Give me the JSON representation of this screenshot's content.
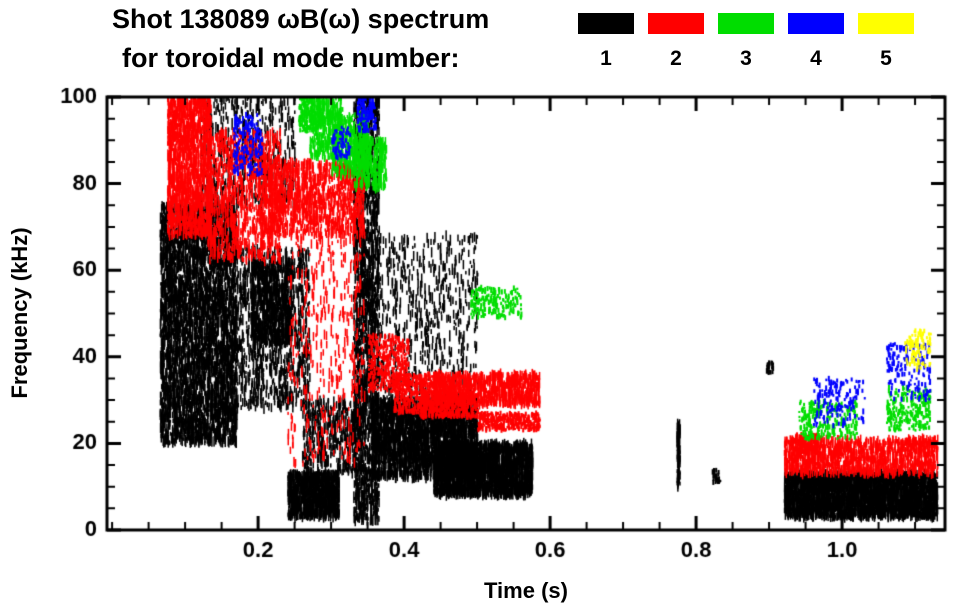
{
  "header": {
    "title": "Shot 138089 ωB(ω) spectrum",
    "subtitle": "for toroidal mode number:"
  },
  "legend": {
    "position": "top-right",
    "items": [
      {
        "label": "1",
        "color": "#000000"
      },
      {
        "label": "2",
        "color": "#ff0000"
      },
      {
        "label": "3",
        "color": "#00dd00"
      },
      {
        "label": "4",
        "color": "#0000ff"
      },
      {
        "label": "5",
        "color": "#ffff00"
      }
    ]
  },
  "chart_data": {
    "type": "scatter",
    "title": "Shot 138089 ωB(ω) spectrum for toroidal mode number 1–5",
    "xlabel": "Time (s)",
    "ylabel": "Frequency (kHz)",
    "xlim": [
      -0.007,
      1.141
    ],
    "ylim": [
      0,
      100
    ],
    "x_ticks": [
      0.2,
      0.4,
      0.6,
      0.8,
      1.0
    ],
    "x_tick_labels": [
      "0.2",
      "0.4",
      "0.6",
      "0.8",
      "1.0"
    ],
    "x_minor": 0.05,
    "y_ticks": [
      0,
      20,
      40,
      60,
      80,
      100
    ],
    "y_tick_labels": [
      "0",
      "20",
      "40",
      "60",
      "80",
      "100"
    ],
    "y_minor": 5,
    "grid": false,
    "frame": true,
    "series": [
      {
        "name": "n=1",
        "mode": 1,
        "color": "#000000",
        "blobs": [
          {
            "t": [
              0.065,
              0.17
            ],
            "f": [
              20,
              75
            ],
            "n": 4200,
            "st": 1
          },
          {
            "t": [
              0.12,
              0.25
            ],
            "f": [
              75,
              100
            ],
            "n": 550,
            "st": 1
          },
          {
            "t": [
              0.17,
              0.27
            ],
            "f": [
              28,
              65
            ],
            "n": 1000,
            "st": 1
          },
          {
            "t": [
              0.19,
              0.245
            ],
            "f": [
              43,
              62
            ],
            "n": 700,
            "st": 1
          },
          {
            "t": [
              0.24,
              0.31
            ],
            "f": [
              3,
              13
            ],
            "n": 1000,
            "st": 1
          },
          {
            "t": [
              0.26,
              0.34
            ],
            "f": [
              13,
              30
            ],
            "n": 450,
            "st": 1
          },
          {
            "t": [
              0.33,
              0.365
            ],
            "f": [
              2,
              100
            ],
            "n": 1900,
            "st": 1
          },
          {
            "t": [
              0.365,
              0.5
            ],
            "f": [
              28,
              68
            ],
            "n": 650,
            "st": 1
          },
          {
            "t": [
              0.355,
              0.5
            ],
            "f": [
              12,
              30
            ],
            "n": 2800,
            "st": 1
          },
          {
            "t": [
              0.44,
              0.575
            ],
            "f": [
              8,
              20
            ],
            "n": 2400,
            "st": 1
          },
          {
            "t": [
              0.773,
              0.777
            ],
            "f": [
              10,
              25
            ],
            "n": 110,
            "st": 1
          },
          {
            "t": [
              0.82,
              0.832
            ],
            "f": [
              11,
              14
            ],
            "n": 25,
            "st": 0
          },
          {
            "t": [
              0.895,
              0.905
            ],
            "f": [
              36,
              39
            ],
            "n": 22,
            "st": 0
          },
          {
            "t": [
              0.92,
              1.13
            ],
            "f": [
              3,
              13
            ],
            "n": 3200,
            "st": 1
          }
        ]
      },
      {
        "name": "n=2",
        "mode": 2,
        "color": "#ff0000",
        "blobs": [
          {
            "t": [
              0.075,
              0.135
            ],
            "f": [
              68,
              100
            ],
            "n": 1500,
            "st": 1
          },
          {
            "t": [
              0.13,
              0.23
            ],
            "f": [
              62,
              92
            ],
            "n": 950,
            "st": 1
          },
          {
            "t": [
              0.2,
              0.345
            ],
            "f": [
              68,
              85
            ],
            "n": 1150,
            "st": 1
          },
          {
            "t": [
              0.24,
              0.345
            ],
            "f": [
              15,
              68
            ],
            "n": 420,
            "st": 1
          },
          {
            "t": [
              0.35,
              0.405
            ],
            "f": [
              32,
              45
            ],
            "n": 380,
            "st": 0
          },
          {
            "t": [
              0.385,
              0.445
            ],
            "f": [
              27,
              36
            ],
            "n": 380,
            "st": 0
          },
          {
            "t": [
              0.42,
              0.5
            ],
            "f": [
              26,
              32
            ],
            "n": 420,
            "st": 0
          },
          {
            "t": [
              0.44,
              0.585
            ],
            "f": [
              29,
              36
            ],
            "n": 850,
            "st": 1
          },
          {
            "t": [
              0.5,
              0.585
            ],
            "f": [
              23,
              27
            ],
            "n": 320,
            "st": 0
          },
          {
            "t": [
              0.92,
              1.13
            ],
            "f": [
              13,
              21
            ],
            "n": 1200,
            "st": 1
          },
          {
            "t": [
              0.93,
              0.965
            ],
            "f": [
              18,
              22
            ],
            "n": 140,
            "st": 0
          }
        ]
      },
      {
        "name": "n=3",
        "mode": 3,
        "color": "#00dd00",
        "blobs": [
          {
            "t": [
              0.255,
              0.285
            ],
            "f": [
              92,
              100
            ],
            "n": 220,
            "st": 0
          },
          {
            "t": [
              0.27,
              0.315
            ],
            "f": [
              86,
              100
            ],
            "n": 350,
            "st": 1
          },
          {
            "t": [
              0.3,
              0.35
            ],
            "f": [
              82,
              96
            ],
            "n": 350,
            "st": 1
          },
          {
            "t": [
              0.33,
              0.375
            ],
            "f": [
              79,
              90
            ],
            "n": 300,
            "st": 1
          },
          {
            "t": [
              0.49,
              0.56
            ],
            "f": [
              49,
              56
            ],
            "n": 190,
            "st": 0
          },
          {
            "t": [
              0.94,
              1.02
            ],
            "f": [
              21,
              30
            ],
            "n": 230,
            "st": 0
          },
          {
            "t": [
              1.06,
              1.12
            ],
            "f": [
              23,
              33
            ],
            "n": 230,
            "st": 0
          }
        ]
      },
      {
        "name": "n=4",
        "mode": 4,
        "color": "#0000ff",
        "blobs": [
          {
            "t": [
              0.165,
              0.205
            ],
            "f": [
              82,
              96
            ],
            "n": 170,
            "st": 0
          },
          {
            "t": [
              0.3,
              0.325
            ],
            "f": [
              86,
              93
            ],
            "n": 70,
            "st": 0
          },
          {
            "t": [
              0.335,
              0.36
            ],
            "f": [
              92,
              100
            ],
            "n": 130,
            "st": 0
          },
          {
            "t": [
              0.96,
              1.03
            ],
            "f": [
              24,
              35
            ],
            "n": 150,
            "st": 0
          },
          {
            "t": [
              1.06,
              1.12
            ],
            "f": [
              30,
              43
            ],
            "n": 160,
            "st": 0
          }
        ]
      },
      {
        "name": "n=5",
        "mode": 5,
        "color": "#ffff00",
        "blobs": [
          {
            "t": [
              1.085,
              1.12
            ],
            "f": [
              37,
              46
            ],
            "n": 100,
            "st": 0
          }
        ]
      }
    ]
  }
}
